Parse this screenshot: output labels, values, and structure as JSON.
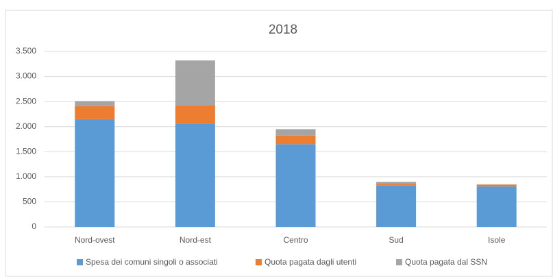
{
  "chart_data": {
    "type": "stacked_bar",
    "title": "2018",
    "categories": [
      "Nord-ovest",
      "Nord-est",
      "Centro",
      "Sud",
      "Isole"
    ],
    "series": [
      {
        "name": "Spesa dei comuni singoli o associati",
        "color": "#5b9bd5",
        "values": [
          2150,
          2060,
          1650,
          830,
          810
        ]
      },
      {
        "name": "Quota pagata dagli utenti",
        "color": "#ed7d31",
        "values": [
          260,
          370,
          170,
          30,
          35
        ]
      },
      {
        "name": "Quota pagata dal SSN",
        "color": "#a5a5a5",
        "values": [
          100,
          890,
          130,
          40,
          5
        ]
      }
    ],
    "ylim": [
      0,
      3500
    ],
    "yticks": [
      0,
      {
        "value": 500,
        "label": "500"
      },
      {
        "value": 1000,
        "label": "1.000"
      },
      {
        "value": 1500,
        "label": "1.500"
      },
      {
        "value": 2000,
        "label": "2.000"
      },
      {
        "value": 2500,
        "label": "2.500"
      },
      {
        "value": 3000,
        "label": "3.000"
      },
      {
        "value": 3500,
        "label": "3.500"
      }
    ],
    "grid": true,
    "legend": "bottom"
  }
}
